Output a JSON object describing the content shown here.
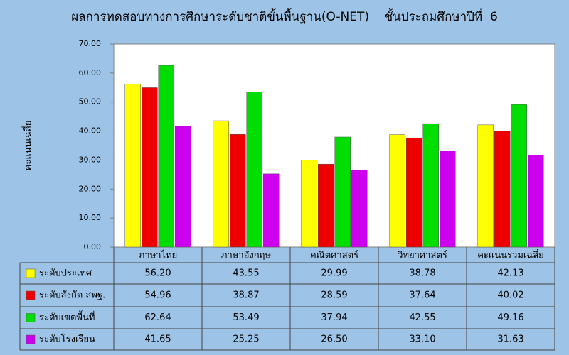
{
  "chart_data": {
    "type": "bar",
    "title": "ผลการทดสอบทางการศึกษาระดับชาติขั้นพื้นฐาน(O-NET)    ชั้นประถมศึกษาปีที่  6",
    "y_label": "คะแนนเฉลี่ย",
    "categories": [
      "ภาษาไทย",
      "ภาษาอังกฤษ",
      "คณิตศาสตร์",
      "วิทยาศาสตร์",
      "คะแนนรวมเฉลี่ย"
    ],
    "series": [
      {
        "name": "ระดับประเทศ",
        "color": "#ffff00",
        "values": [
          56.2,
          43.55,
          29.99,
          38.78,
          42.13
        ],
        "value_labels": [
          "56.20",
          "43.55",
          "29.99",
          "38.78",
          "42.13"
        ]
      },
      {
        "name": "ระดับสังกัด สพฐ.",
        "color": "#ee0000",
        "values": [
          54.96,
          38.87,
          28.59,
          37.64,
          40.02
        ],
        "value_labels": [
          "54.96",
          "38.87",
          "28.59",
          "37.64",
          "40.02"
        ]
      },
      {
        "name": "ระดับเขตพื้นที่",
        "color": "#00dd00",
        "values": [
          62.64,
          53.49,
          37.94,
          42.55,
          49.16
        ],
        "value_labels": [
          "62.64",
          "53.49",
          "37.94",
          "42.55",
          "49.16"
        ]
      },
      {
        "name": "ระดับโรงเรียน",
        "color": "#cc00ee",
        "values": [
          41.65,
          25.25,
          26.5,
          33.1,
          31.63
        ],
        "value_labels": [
          "41.65",
          "25.25",
          "26.50",
          "33.10",
          "31.63"
        ]
      }
    ],
    "ylim": [
      0,
      70
    ],
    "yticks": [
      {
        "value": 0,
        "label": "0.00"
      },
      {
        "value": 10,
        "label": "10.00"
      },
      {
        "value": 20,
        "label": "20.00"
      },
      {
        "value": 30,
        "label": "30.00"
      },
      {
        "value": 40,
        "label": "40.00"
      },
      {
        "value": 50,
        "label": "50.00"
      },
      {
        "value": 60,
        "label": "60.00"
      },
      {
        "value": 70,
        "label": "70.00"
      }
    ],
    "grid": false
  }
}
